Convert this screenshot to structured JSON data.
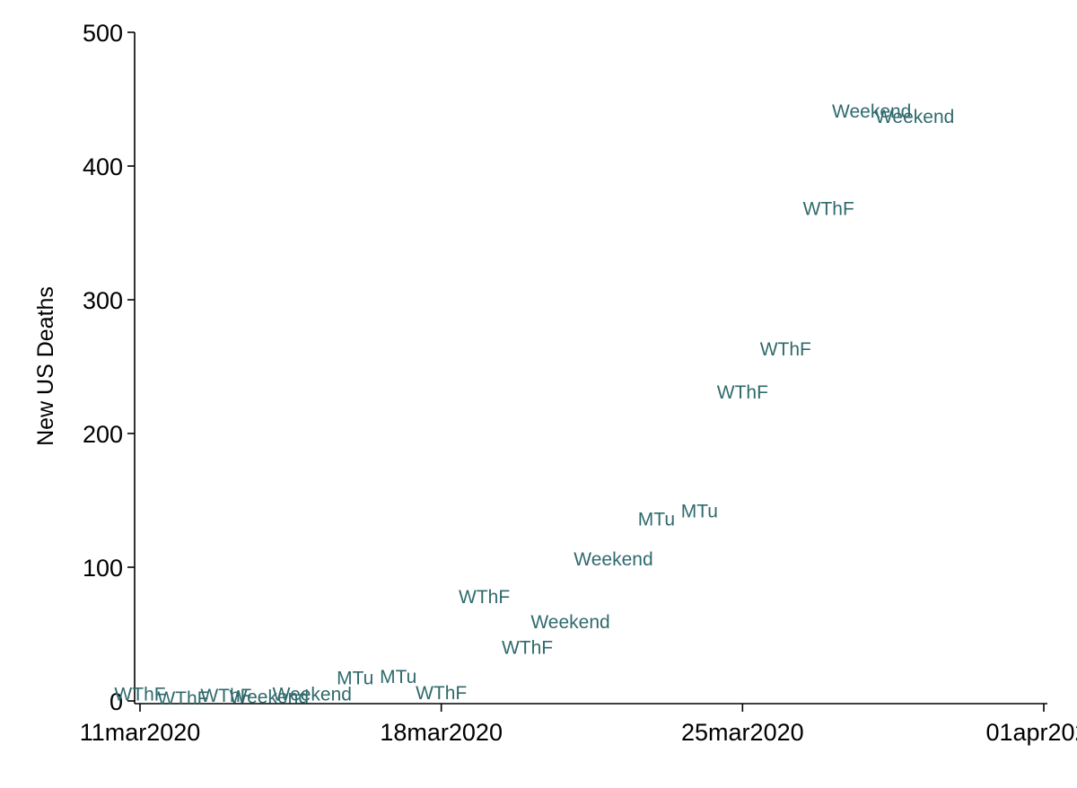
{
  "chart_data": {
    "type": "scatter",
    "title": "",
    "xlabel": "",
    "ylabel": "New US Deaths",
    "xlim": [
      "2020-03-11",
      "2020-04-01"
    ],
    "ylim": [
      0,
      500
    ],
    "yticks": [
      0,
      100,
      200,
      300,
      400,
      500
    ],
    "xticks": [
      {
        "date": "2020-03-11",
        "label": "11mar2020"
      },
      {
        "date": "2020-03-18",
        "label": "18mar2020"
      },
      {
        "date": "2020-03-25",
        "label": "25mar2020"
      },
      {
        "date": "2020-04-01",
        "label": "01apr2020"
      }
    ],
    "marker_color": "#2f6a6c",
    "grid": false,
    "points": [
      {
        "date": "2020-03-11",
        "value": 5,
        "label": "WThF"
      },
      {
        "date": "2020-03-12",
        "value": 2,
        "label": "WThF"
      },
      {
        "date": "2020-03-13",
        "value": 4,
        "label": "WThF"
      },
      {
        "date": "2020-03-14",
        "value": 3,
        "label": "Weekend"
      },
      {
        "date": "2020-03-15",
        "value": 5,
        "label": "Weekend"
      },
      {
        "date": "2020-03-16",
        "value": 17,
        "label": "MTu"
      },
      {
        "date": "2020-03-17",
        "value": 18,
        "label": "MTu"
      },
      {
        "date": "2020-03-18",
        "value": 6,
        "label": "WThF"
      },
      {
        "date": "2020-03-19",
        "value": 78,
        "label": "WThF"
      },
      {
        "date": "2020-03-20",
        "value": 40,
        "label": "WThF"
      },
      {
        "date": "2020-03-21",
        "value": 59,
        "label": "Weekend"
      },
      {
        "date": "2020-03-22",
        "value": 106,
        "label": "Weekend"
      },
      {
        "date": "2020-03-23",
        "value": 136,
        "label": "MTu"
      },
      {
        "date": "2020-03-24",
        "value": 142,
        "label": "MTu"
      },
      {
        "date": "2020-03-25",
        "value": 231,
        "label": "WThF"
      },
      {
        "date": "2020-03-26",
        "value": 263,
        "label": "WThF"
      },
      {
        "date": "2020-03-27",
        "value": 368,
        "label": "WThF"
      },
      {
        "date": "2020-03-28",
        "value": 441,
        "label": "Weekend"
      },
      {
        "date": "2020-03-29",
        "value": 437,
        "label": "Weekend"
      }
    ]
  }
}
